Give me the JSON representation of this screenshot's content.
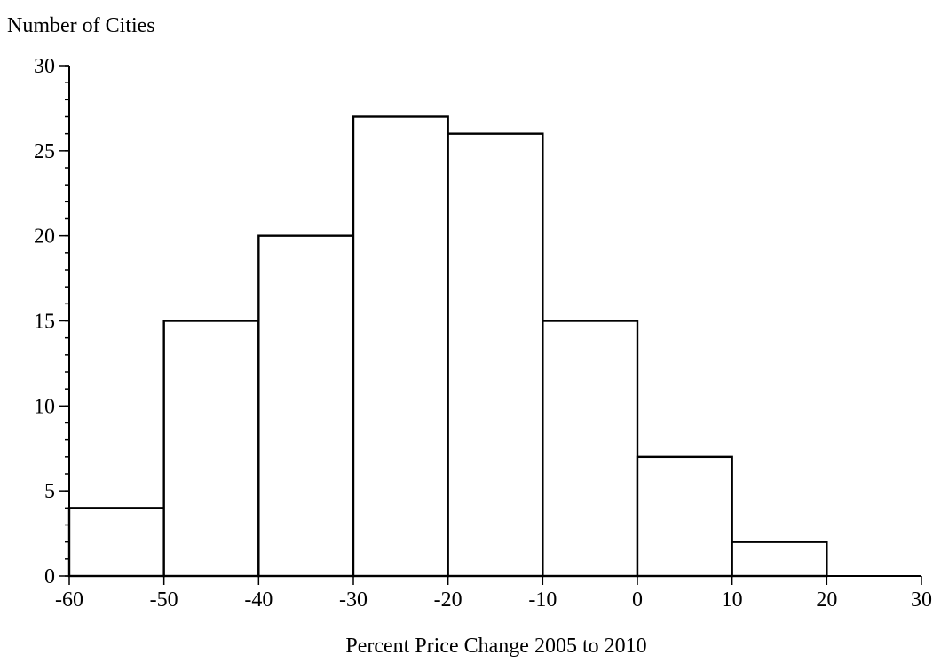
{
  "chart_data": {
    "type": "bar",
    "title": "",
    "ylabel": "Number of Cities",
    "xlabel": "Percent Price Change 2005 to 2010",
    "bins": [
      {
        "start": -60,
        "end": -50,
        "value": 4
      },
      {
        "start": -50,
        "end": -40,
        "value": 15
      },
      {
        "start": -40,
        "end": -30,
        "value": 20
      },
      {
        "start": -30,
        "end": -20,
        "value": 27
      },
      {
        "start": -20,
        "end": -10,
        "value": 26
      },
      {
        "start": -10,
        "end": 0,
        "value": 15
      },
      {
        "start": 0,
        "end": 10,
        "value": 7
      },
      {
        "start": 10,
        "end": 20,
        "value": 2
      }
    ],
    "xlim": [
      -60,
      30
    ],
    "ylim": [
      0,
      30
    ],
    "x_ticks": [
      "-60",
      "-50",
      "-40",
      "-30",
      "-20",
      "-10",
      "0",
      "10",
      "20",
      "30"
    ],
    "y_ticks": [
      "0",
      "5",
      "10",
      "15",
      "20",
      "25",
      "30"
    ],
    "y_minor_step": 1,
    "grid": false,
    "legend": "none"
  }
}
